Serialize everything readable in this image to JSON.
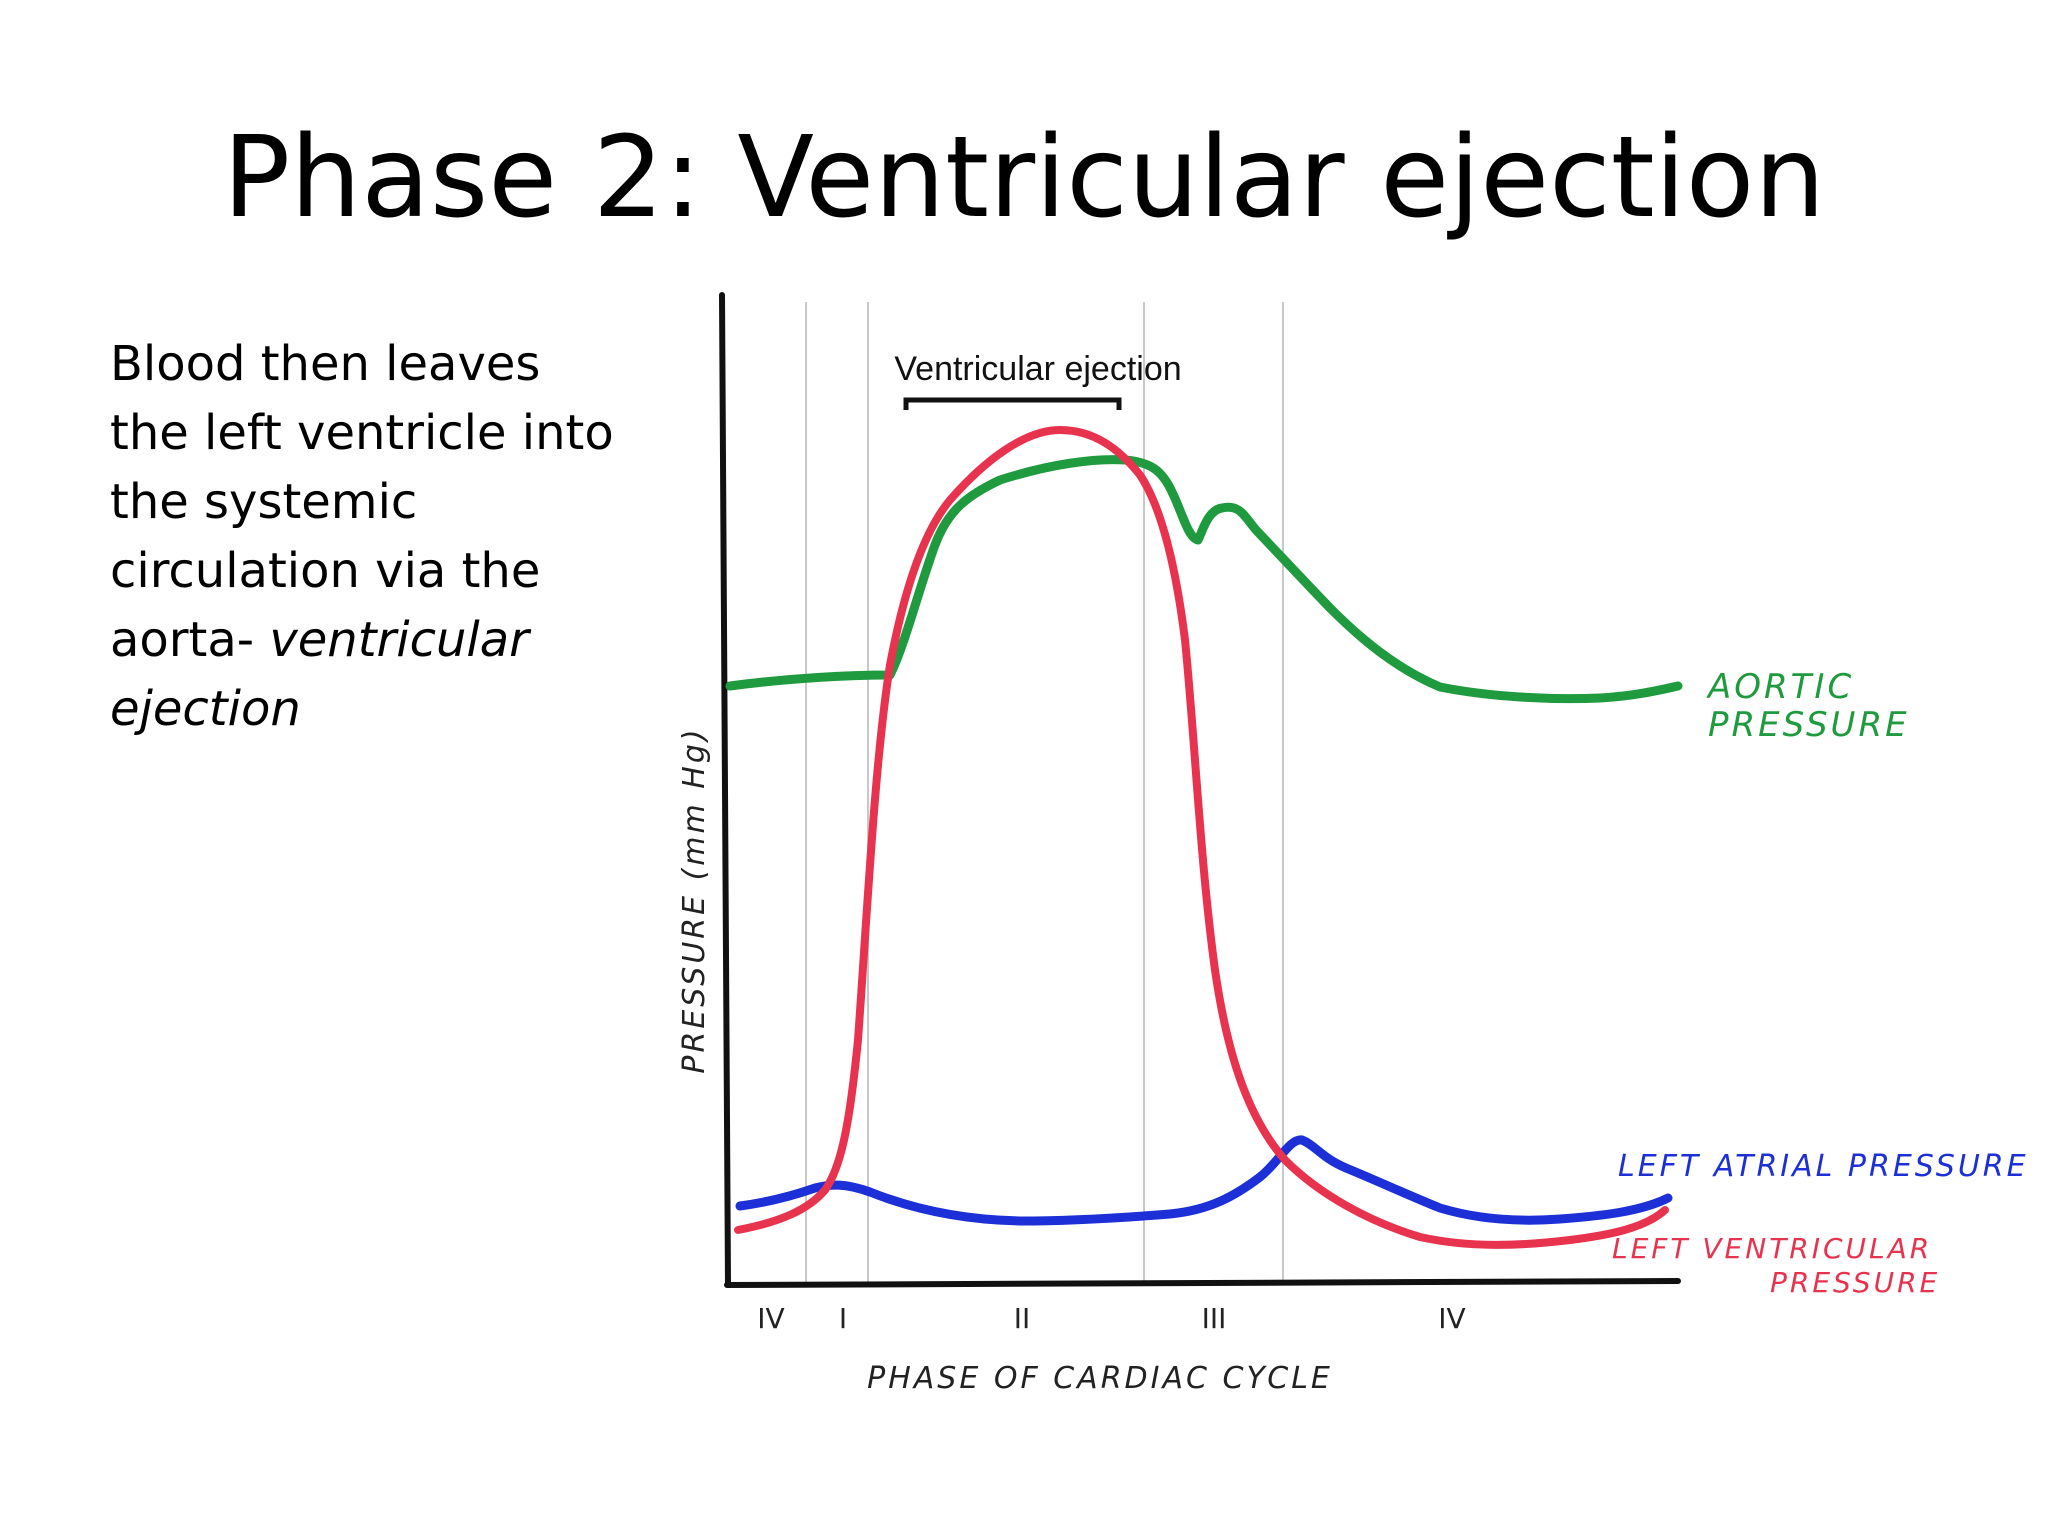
{
  "slide": {
    "title": "Phase 2: Ventricular ejection",
    "body_text": {
      "normal": "Blood then leaves the left ventricle into the systemic circulation via the aorta-",
      "italic": "ventricular ejection"
    }
  },
  "diagram": {
    "annotation": "Ventricular ejection",
    "y_axis_label": "PRESSURE (mm Hg)",
    "x_axis_label": "PHASE OF CARDIAC CYCLE",
    "phase_labels": [
      "IV",
      "I",
      "II",
      "III",
      "IV"
    ],
    "curves": {
      "aortic": {
        "label_line1": "AORTIC",
        "label_line2": "PRESSURE",
        "color": "#1f9a3f"
      },
      "atrial": {
        "label": "LEFT ATRIAL PRESSURE",
        "color": "#1d2fd6"
      },
      "ventricular": {
        "label_line1": "LEFT VENTRICULAR",
        "label_line2": "PRESSURE",
        "color": "#e8334f"
      }
    }
  }
}
